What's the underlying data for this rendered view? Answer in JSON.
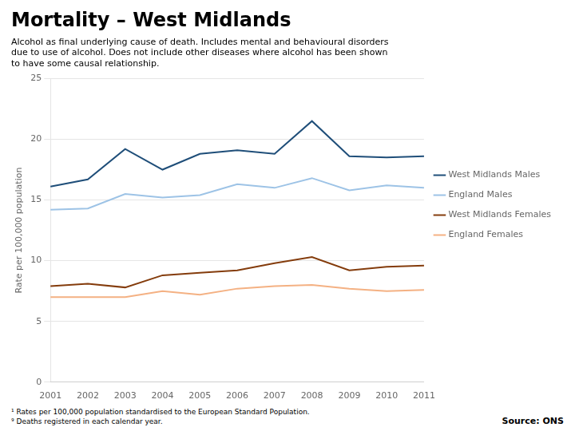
{
  "chart_data": {
    "type": "line",
    "title": "Mortality – West Midlands",
    "subtitle": [
      "Alcohol as final underlying cause of death. Includes mental and behavioural disorders",
      "due to use of alcohol. Does not include other diseases where alcohol has been shown",
      "to have some causal relationship."
    ],
    "y_label": "Rate per 100,000 population",
    "categories": [
      "2001",
      "2002",
      "2003",
      "2004",
      "2005",
      "2006",
      "2007",
      "2008",
      "2009",
      "2010",
      "2011"
    ],
    "series": [
      {
        "name": "West Midlands Males",
        "color": "#1F4E79",
        "values": [
          16.1,
          16.7,
          19.2,
          17.5,
          18.8,
          19.1,
          18.8,
          21.5,
          18.6,
          18.5,
          18.6
        ]
      },
      {
        "name": "England Males",
        "color": "#9DC3E6",
        "values": [
          14.2,
          14.3,
          15.5,
          15.2,
          15.4,
          16.3,
          16.0,
          16.8,
          15.8,
          16.2,
          16.0
        ]
      },
      {
        "name": "West Midlands Females",
        "color": "#843C0C",
        "values": [
          7.9,
          8.1,
          7.8,
          8.8,
          9.0,
          9.2,
          9.8,
          10.3,
          9.2,
          9.5,
          9.6
        ]
      },
      {
        "name": "England Females",
        "color": "#F4B183",
        "values": [
          7.0,
          7.0,
          7.0,
          7.5,
          7.2,
          7.7,
          7.9,
          8.0,
          7.7,
          7.5,
          7.6
        ]
      }
    ],
    "ylim": [
      0,
      25
    ],
    "yticks": [
      0,
      5,
      10,
      15,
      20,
      25
    ],
    "grid": true,
    "legend": "right",
    "footnotes": [
      "¹ Rates per 100,000 population standardised to the European Standard Population.",
      "⁹ Deaths registered in each calendar year."
    ],
    "source": "Source: ONS"
  }
}
